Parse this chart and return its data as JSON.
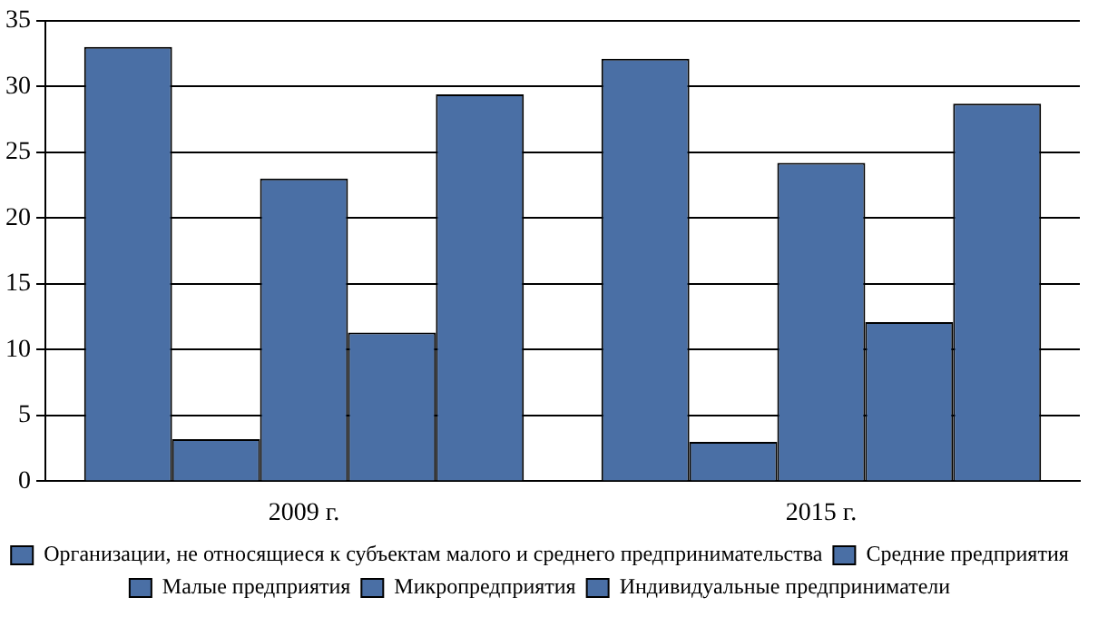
{
  "chart_data": {
    "type": "bar",
    "categories": [
      "2009 г.",
      "2015 г."
    ],
    "series": [
      {
        "name": "Организации, не относящиеся к субъектам малого и среднего предпринимательства",
        "color": "#4a6fa5",
        "values": [
          33.0,
          32.1
        ]
      },
      {
        "name": "Средние предприятия",
        "color": "#4a6fa5",
        "values": [
          3.2,
          3.0
        ]
      },
      {
        "name": "Малые предприятия",
        "color": "#4a6fa5",
        "values": [
          23.0,
          24.2
        ]
      },
      {
        "name": "Микропредприятия",
        "color": "#4a6fa5",
        "values": [
          11.3,
          12.1
        ]
      },
      {
        "name": "Индивидуальные предприниматели",
        "color": "#4a6fa5",
        "values": [
          29.4,
          28.7
        ]
      }
    ],
    "ylim": [
      0,
      35
    ],
    "yticks": [
      0,
      5,
      10,
      15,
      20,
      25,
      30,
      35
    ],
    "grid": "y",
    "legend": "bottom"
  }
}
